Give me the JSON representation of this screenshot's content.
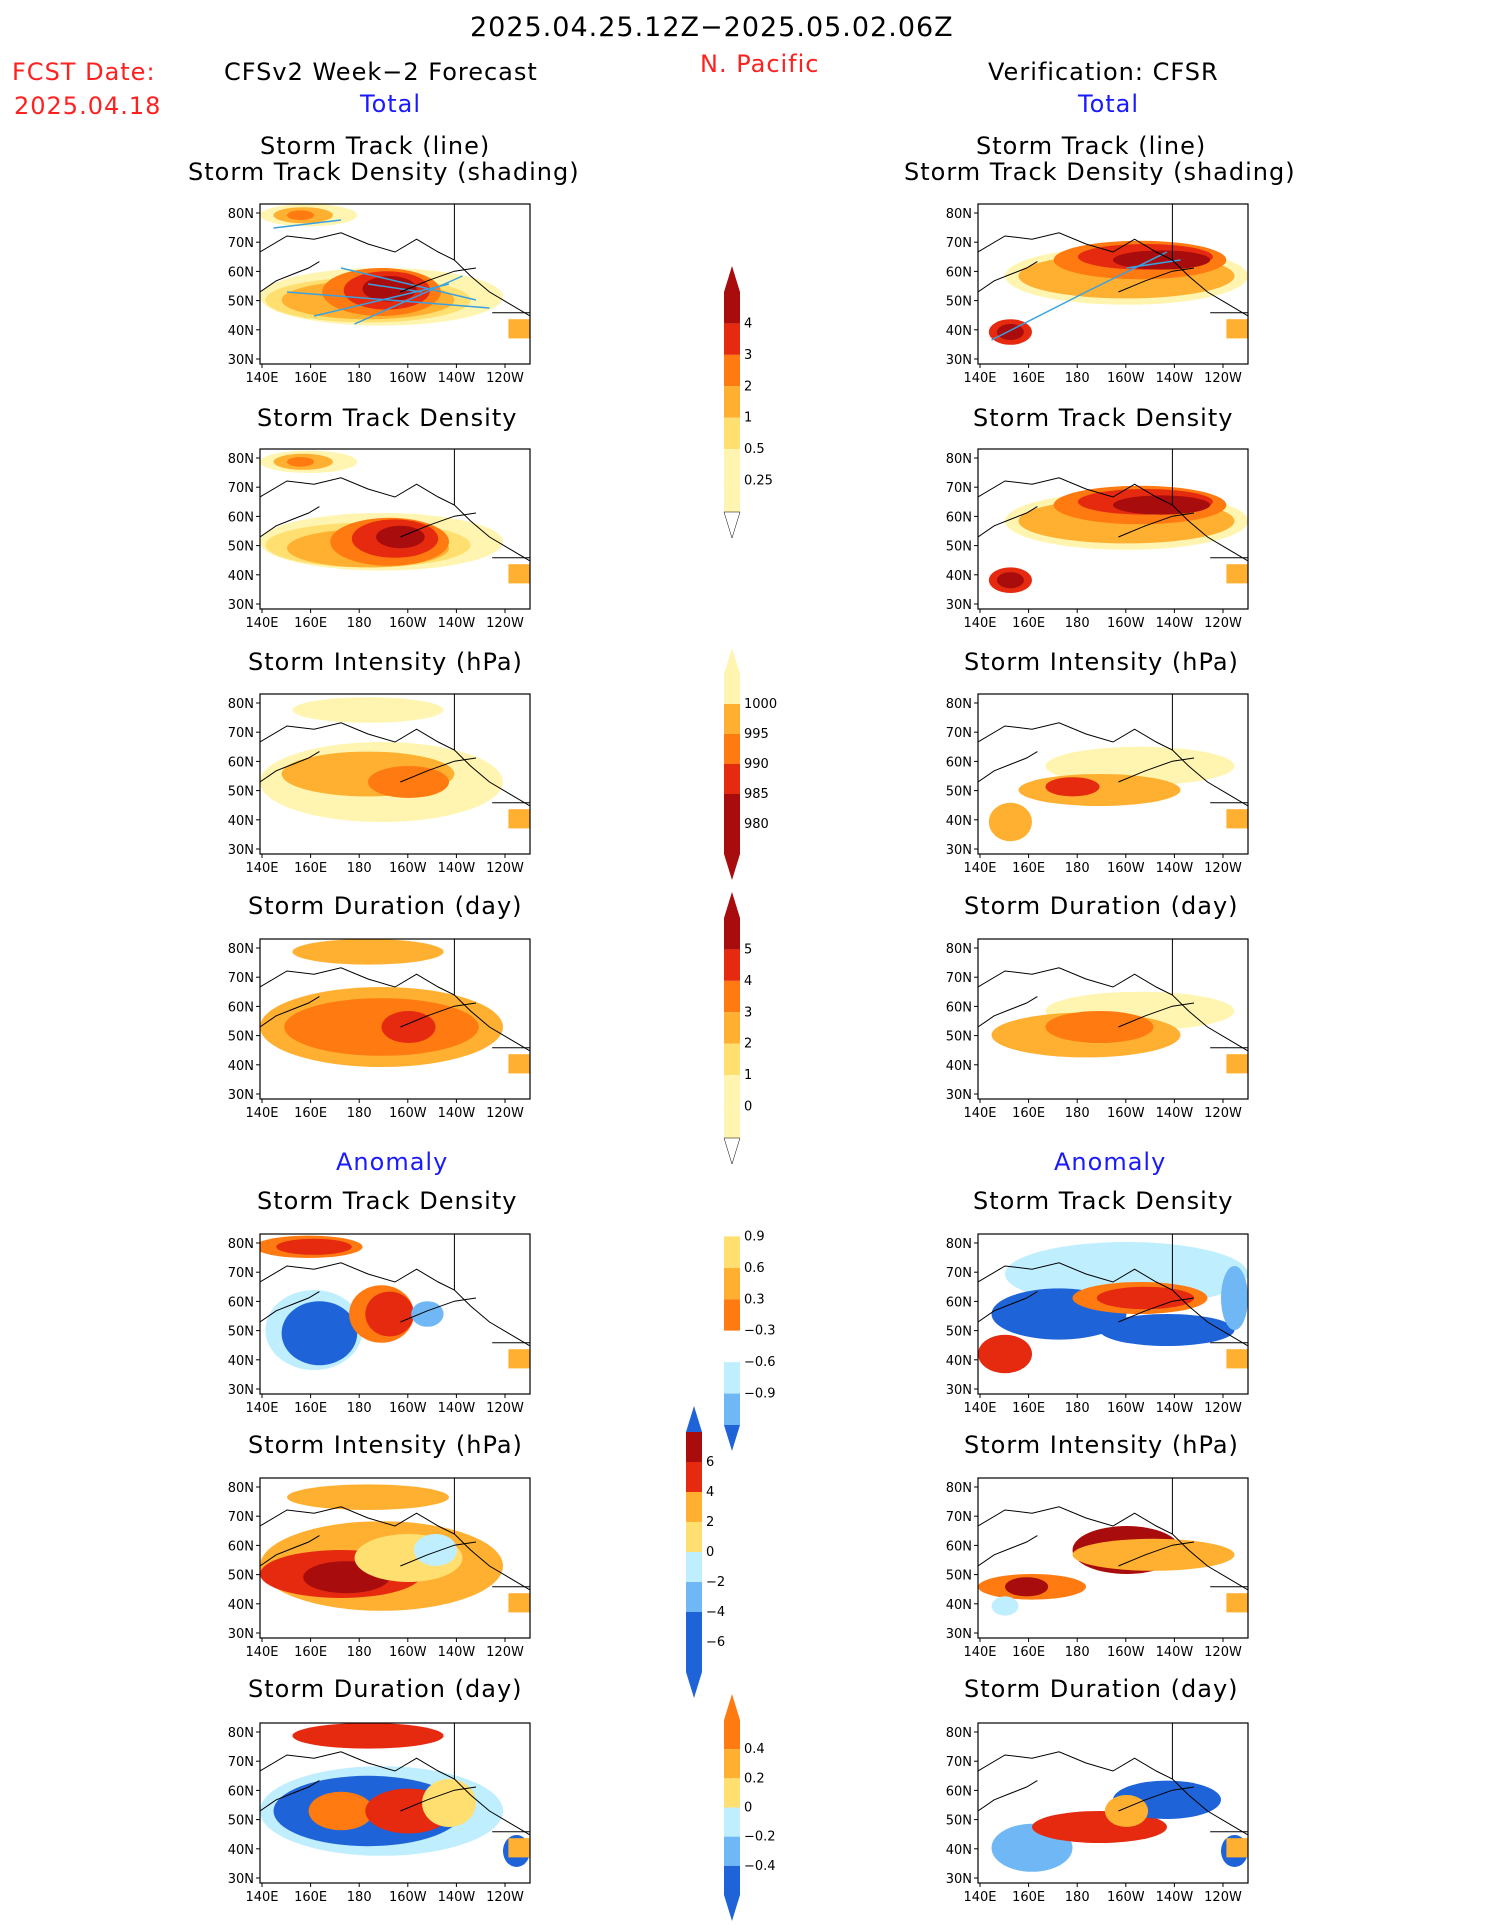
{
  "header": {
    "date_range": "2025.04.25.12Z−2025.05.02.06Z",
    "fcst_label": "FCST Date:",
    "fcst_date": "2025.04.18",
    "region": "N. Pacific",
    "left_title": "CFSv2 Week−2 Forecast",
    "right_title": "Verification: CFSR",
    "left_section_total": "Total",
    "right_section_total": "Total",
    "left_section_anomaly": "Anomaly",
    "right_section_anomaly": "Anomaly"
  },
  "axes": {
    "lat_labels": [
      "80N",
      "70N",
      "60N",
      "50N",
      "40N",
      "30N"
    ],
    "lon_labels": [
      "140E",
      "160E",
      "180",
      "160W",
      "140W",
      "120W"
    ]
  },
  "panels": {
    "p1_title_a": "Storm Track (line)",
    "p1_title_b": "Storm Track Density (shading)",
    "p2_title": "Storm Track Density",
    "p3_title": "Storm Intensity (hPa)",
    "p4_title": "Storm Duration (day)",
    "p5_title": "Storm Track Density",
    "p6_title": "Storm Intensity (hPa)",
    "p7_title": "Storm Duration (day)"
  },
  "colorbars": {
    "density": [
      "4",
      "3",
      "2",
      "1",
      "0.5",
      "0.25"
    ],
    "intensity": [
      "1000",
      "995",
      "990",
      "985",
      "980"
    ],
    "duration": [
      "5",
      "4",
      "3",
      "2",
      "1",
      "0"
    ],
    "density_anom": [
      "0.9",
      "0.6",
      "0.3",
      "−0.3",
      "−0.6",
      "−0.9"
    ],
    "intensity_anom": [
      "6",
      "4",
      "2",
      "0",
      "−2",
      "−4",
      "−6"
    ],
    "duration_anom": [
      "0.4",
      "0.2",
      "0",
      "−0.2",
      "−0.4"
    ]
  },
  "colors": {
    "yellow1": "#fff5b0",
    "yellow2": "#ffdf70",
    "orange1": "#ffb030",
    "orange2": "#ff7a10",
    "red1": "#e52a10",
    "red2": "#a80c0c",
    "lightblue": "#bfeeff",
    "blue1": "#6fb8f5",
    "blue2": "#1e64d8",
    "track_line": "#3aa0e0"
  }
}
